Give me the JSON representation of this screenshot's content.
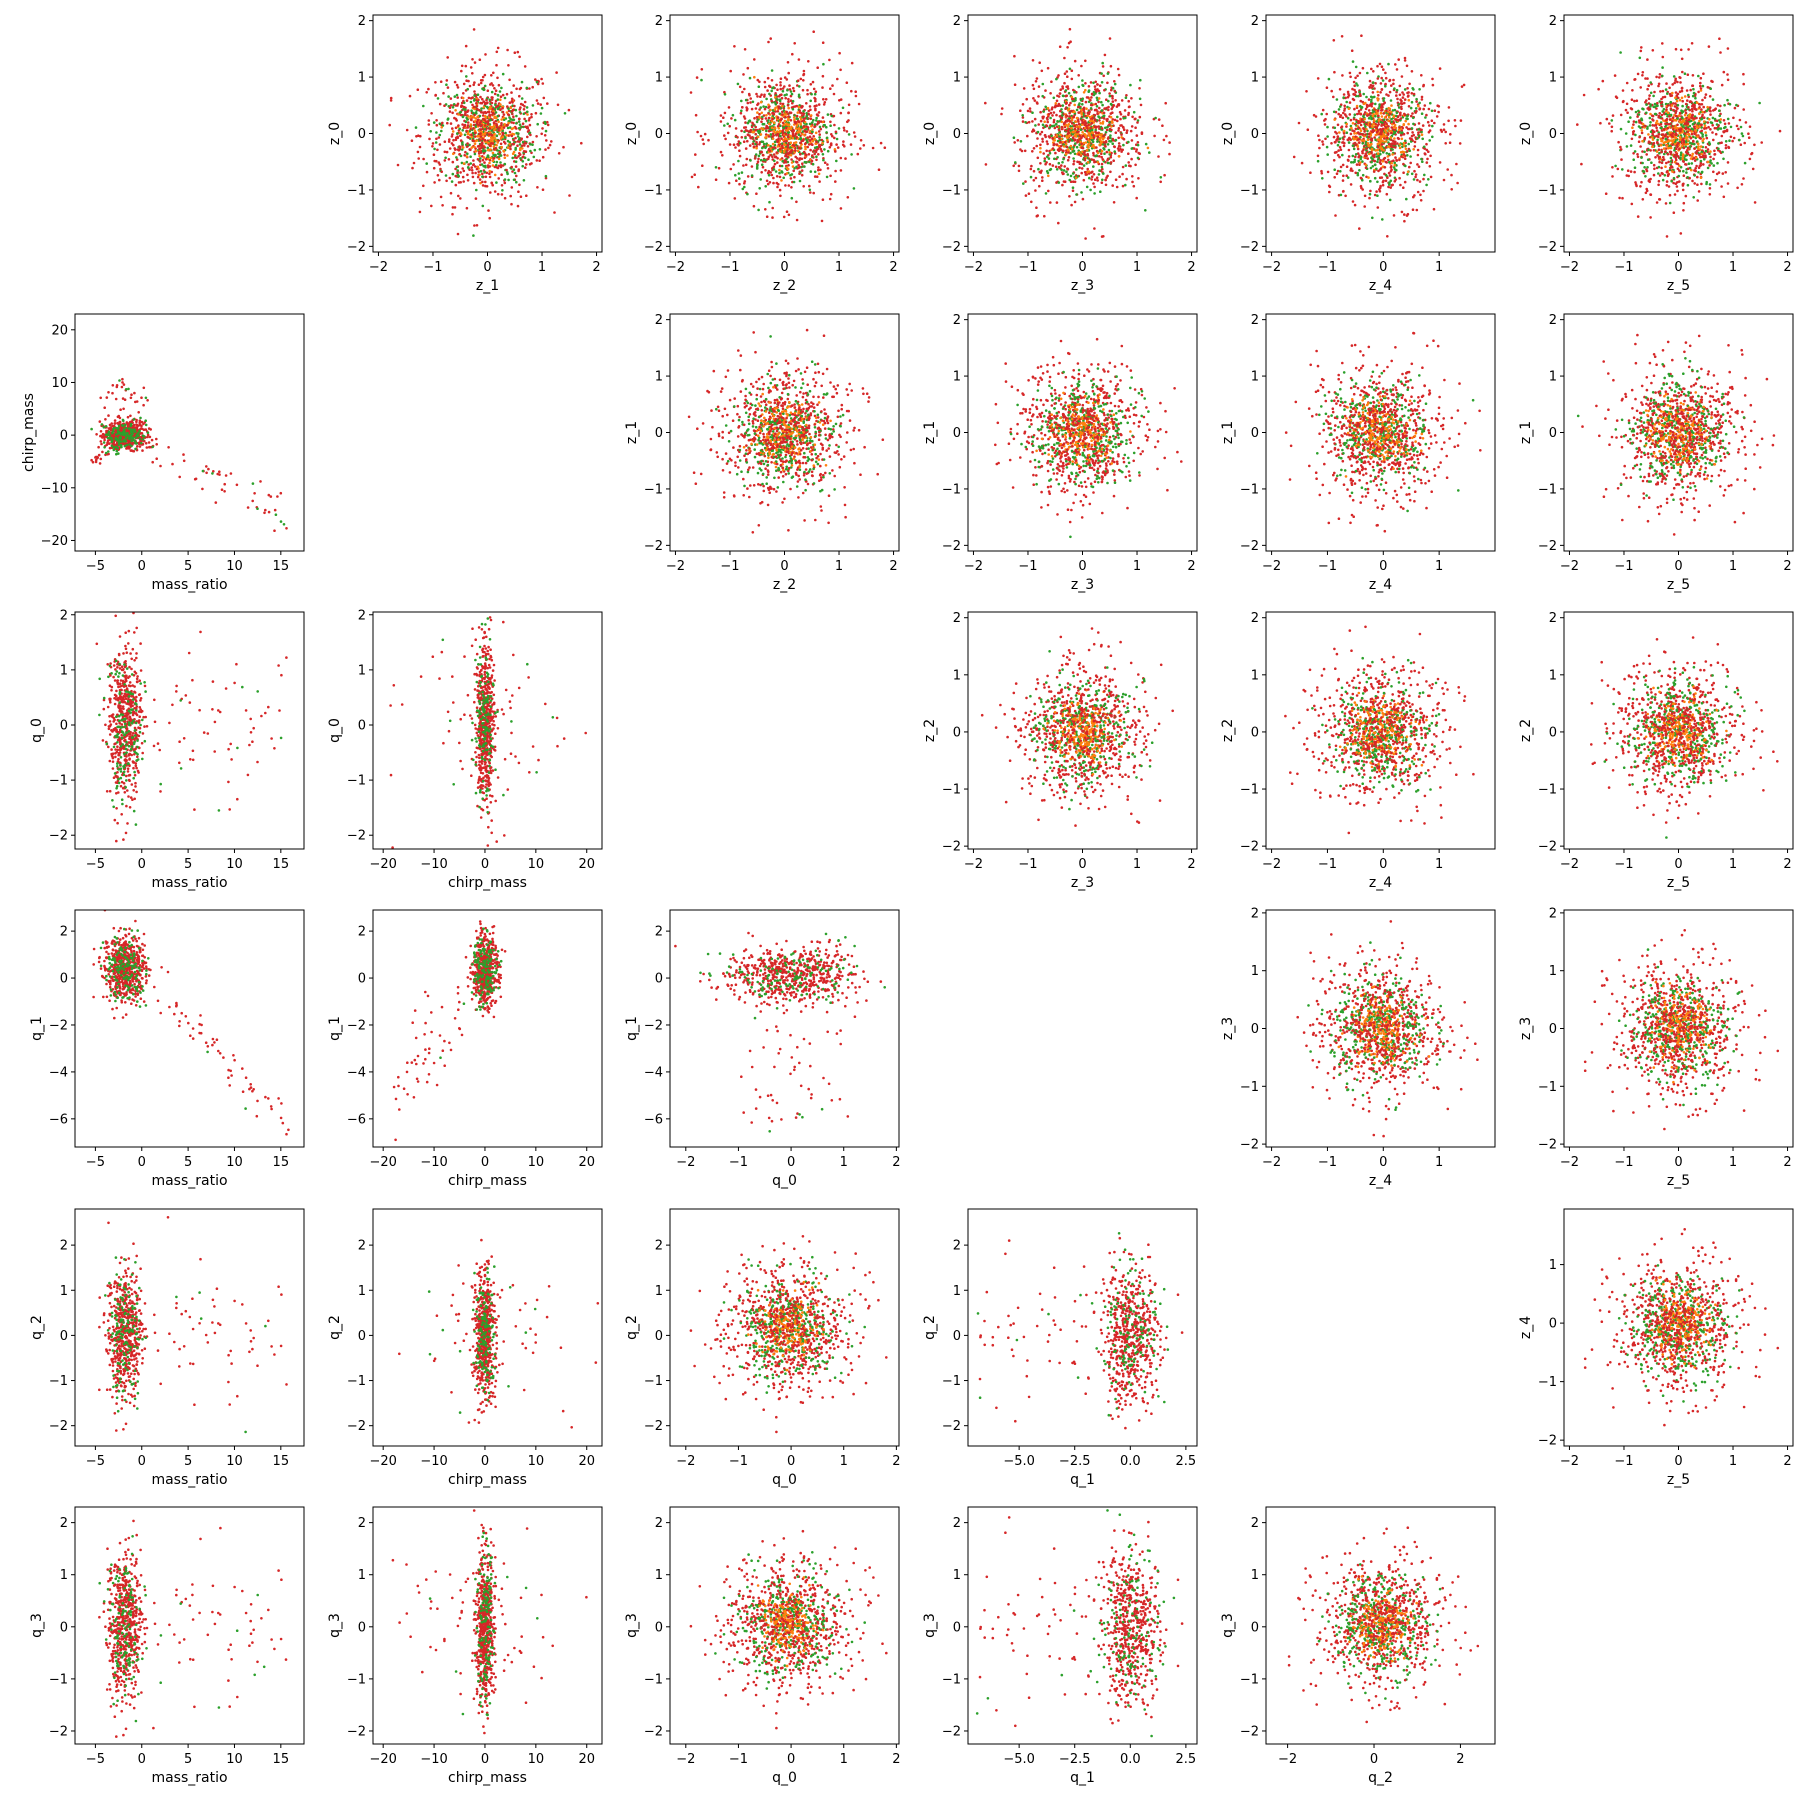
{
  "chart_data": {
    "type": "scatter",
    "layout": "corner-plot grid, 6 rows x 6 columns",
    "colors": {
      "red_points": "#d62728",
      "green_points": "#2ca02c",
      "orange_points": "#ff7f0e",
      "frame": "#000000"
    },
    "panels": [
      {
        "id": "p-0-1",
        "xlabel": "z_1",
        "ylabel": "z_0",
        "xlim": [
          -2.1,
          2.1
        ],
        "ylim": [
          -2.1,
          2.1
        ],
        "xticks": [
          -2,
          -1,
          0,
          1,
          2
        ],
        "yticks": [
          -2,
          -1,
          0,
          1,
          2
        ],
        "x_range": [
          -1.9,
          1.9
        ],
        "y_range": [
          -1.9,
          1.9
        ],
        "shape": "round"
      },
      {
        "id": "p-0-2",
        "xlabel": "z_2",
        "ylabel": "z_0",
        "xlim": [
          -2.1,
          2.1
        ],
        "ylim": [
          -2.1,
          2.1
        ],
        "xticks": [
          -2,
          -1,
          0,
          1,
          2
        ],
        "yticks": [
          -2,
          -1,
          0,
          1,
          2
        ],
        "x_range": [
          -1.9,
          1.9
        ],
        "y_range": [
          -1.9,
          1.9
        ],
        "shape": "round"
      },
      {
        "id": "p-0-3",
        "xlabel": "z_3",
        "ylabel": "z_0",
        "xlim": [
          -2.1,
          2.1
        ],
        "ylim": [
          -2.1,
          2.1
        ],
        "xticks": [
          -2,
          -1,
          0,
          1,
          2
        ],
        "yticks": [
          -2,
          -1,
          0,
          1,
          2
        ],
        "x_range": [
          -1.9,
          1.9
        ],
        "y_range": [
          -1.9,
          1.9
        ],
        "shape": "round"
      },
      {
        "id": "p-0-4",
        "xlabel": "z_4",
        "ylabel": "z_0",
        "xlim": [
          -2.1,
          2.0
        ],
        "ylim": [
          -2.1,
          2.1
        ],
        "xticks": [
          -2,
          -1,
          0,
          1
        ],
        "yticks": [
          -2,
          -1,
          0,
          1,
          2
        ],
        "x_range": [
          -1.9,
          1.8
        ],
        "y_range": [
          -1.9,
          1.9
        ],
        "shape": "round"
      },
      {
        "id": "p-0-5",
        "xlabel": "z_5",
        "ylabel": "z_0",
        "xlim": [
          -2.1,
          2.1
        ],
        "ylim": [
          -2.1,
          2.1
        ],
        "xticks": [
          -2,
          -1,
          0,
          1,
          2
        ],
        "yticks": [
          -2,
          -1,
          0,
          1,
          2
        ],
        "x_range": [
          -1.9,
          1.9
        ],
        "y_range": [
          -1.9,
          1.9
        ],
        "shape": "round"
      },
      {
        "id": "p-1-0",
        "xlabel": "mass_ratio",
        "ylabel": "chirp_mass",
        "xlim": [
          -7.2,
          17.5
        ],
        "ylim": [
          -22,
          23
        ],
        "xticks": [
          -5,
          0,
          5,
          10,
          15
        ],
        "yticks": [
          -20,
          -10,
          0,
          10,
          20
        ],
        "shape": "chirp_vs_ratio"
      },
      {
        "id": "p-1-2",
        "xlabel": "z_2",
        "ylabel": "z_1",
        "xlim": [
          -2.1,
          2.1
        ],
        "ylim": [
          -2.1,
          2.1
        ],
        "xticks": [
          -2,
          -1,
          0,
          1,
          2
        ],
        "yticks": [
          -2,
          -1,
          0,
          1,
          2
        ],
        "x_range": [
          -1.9,
          1.9
        ],
        "y_range": [
          -1.9,
          1.9
        ],
        "shape": "round"
      },
      {
        "id": "p-1-3",
        "xlabel": "z_3",
        "ylabel": "z_1",
        "xlim": [
          -2.1,
          2.1
        ],
        "ylim": [
          -2.1,
          2.1
        ],
        "xticks": [
          -2,
          -1,
          0,
          1,
          2
        ],
        "yticks": [
          -2,
          -1,
          0,
          1,
          2
        ],
        "x_range": [
          -1.9,
          1.9
        ],
        "y_range": [
          -1.9,
          1.9
        ],
        "shape": "round"
      },
      {
        "id": "p-1-4",
        "xlabel": "z_4",
        "ylabel": "z_1",
        "xlim": [
          -2.1,
          2.0
        ],
        "ylim": [
          -2.1,
          2.1
        ],
        "xticks": [
          -2,
          -1,
          0,
          1
        ],
        "yticks": [
          -2,
          -1,
          0,
          1,
          2
        ],
        "x_range": [
          -1.9,
          1.8
        ],
        "y_range": [
          -1.9,
          1.9
        ],
        "shape": "round"
      },
      {
        "id": "p-1-5",
        "xlabel": "z_5",
        "ylabel": "z_1",
        "xlim": [
          -2.1,
          2.1
        ],
        "ylim": [
          -2.1,
          2.1
        ],
        "xticks": [
          -2,
          -1,
          0,
          1,
          2
        ],
        "yticks": [
          -2,
          -1,
          0,
          1,
          2
        ],
        "x_range": [
          -1.9,
          1.9
        ],
        "y_range": [
          -1.9,
          1.9
        ],
        "shape": "round"
      },
      {
        "id": "p-2-0",
        "xlabel": "mass_ratio",
        "ylabel": "q_0",
        "xlim": [
          -7.2,
          17.5
        ],
        "ylim": [
          -2.25,
          2.05
        ],
        "xticks": [
          -5,
          0,
          5,
          10,
          15
        ],
        "yticks": [
          -2,
          -1,
          0,
          1,
          2
        ],
        "shape": "q_vs_ratio"
      },
      {
        "id": "p-2-1",
        "xlabel": "chirp_mass",
        "ylabel": "q_0",
        "xlim": [
          -22,
          23
        ],
        "ylim": [
          -2.25,
          2.05
        ],
        "xticks": [
          -20,
          -10,
          0,
          10,
          20
        ],
        "yticks": [
          -2,
          -1,
          0,
          1,
          2
        ],
        "shape": "q_vs_chirp"
      },
      {
        "id": "p-2-3",
        "xlabel": "z_3",
        "ylabel": "z_2",
        "xlim": [
          -2.1,
          2.1
        ],
        "ylim": [
          -2.05,
          2.1
        ],
        "xticks": [
          -2,
          -1,
          0,
          1,
          2
        ],
        "yticks": [
          -2,
          -1,
          0,
          1,
          2
        ],
        "x_range": [
          -1.9,
          1.9
        ],
        "y_range": [
          -1.9,
          1.9
        ],
        "shape": "round"
      },
      {
        "id": "p-2-4",
        "xlabel": "z_4",
        "ylabel": "z_2",
        "xlim": [
          -2.1,
          2.0
        ],
        "ylim": [
          -2.05,
          2.1
        ],
        "xticks": [
          -2,
          -1,
          0,
          1
        ],
        "yticks": [
          -2,
          -1,
          0,
          1,
          2
        ],
        "x_range": [
          -1.9,
          1.8
        ],
        "y_range": [
          -1.9,
          1.9
        ],
        "shape": "round"
      },
      {
        "id": "p-2-5",
        "xlabel": "z_5",
        "ylabel": "z_2",
        "xlim": [
          -2.1,
          2.1
        ],
        "ylim": [
          -2.05,
          2.1
        ],
        "xticks": [
          -2,
          -1,
          0,
          1,
          2
        ],
        "yticks": [
          -2,
          -1,
          0,
          1,
          2
        ],
        "x_range": [
          -1.9,
          1.9
        ],
        "y_range": [
          -1.9,
          1.9
        ],
        "shape": "round"
      },
      {
        "id": "p-3-0",
        "xlabel": "mass_ratio",
        "ylabel": "q_1",
        "xlim": [
          -7.2,
          17.5
        ],
        "ylim": [
          -7.2,
          2.9
        ],
        "xticks": [
          -5,
          0,
          5,
          10,
          15
        ],
        "yticks": [
          -6,
          -4,
          -2,
          0,
          2
        ],
        "shape": "q1_vs_ratio"
      },
      {
        "id": "p-3-1",
        "xlabel": "chirp_mass",
        "ylabel": "q_1",
        "xlim": [
          -22,
          23
        ],
        "ylim": [
          -7.2,
          2.9
        ],
        "xticks": [
          -20,
          -10,
          0,
          10,
          20
        ],
        "yticks": [
          -6,
          -4,
          -2,
          0,
          2
        ],
        "shape": "q1_vs_chirp"
      },
      {
        "id": "p-3-2",
        "xlabel": "q_0",
        "ylabel": "q_1",
        "xlim": [
          -2.3,
          2.05
        ],
        "ylim": [
          -7.2,
          2.9
        ],
        "xticks": [
          -2,
          -1,
          0,
          1,
          2
        ],
        "yticks": [
          -6,
          -4,
          -2,
          0,
          2
        ],
        "shape": "q1_vs_q0"
      },
      {
        "id": "p-3-4",
        "xlabel": "z_4",
        "ylabel": "z_3",
        "xlim": [
          -2.1,
          2.0
        ],
        "ylim": [
          -2.05,
          2.05
        ],
        "xticks": [
          -2,
          -1,
          0,
          1
        ],
        "yticks": [
          -2,
          -1,
          0,
          1,
          2
        ],
        "x_range": [
          -1.9,
          1.8
        ],
        "y_range": [
          -1.9,
          1.9
        ],
        "shape": "round"
      },
      {
        "id": "p-3-5",
        "xlabel": "z_5",
        "ylabel": "z_3",
        "xlim": [
          -2.1,
          2.1
        ],
        "ylim": [
          -2.05,
          2.05
        ],
        "xticks": [
          -2,
          -1,
          0,
          1,
          2
        ],
        "yticks": [
          -2,
          -1,
          0,
          1,
          2
        ],
        "x_range": [
          -1.9,
          1.9
        ],
        "y_range": [
          -1.9,
          1.9
        ],
        "shape": "round"
      },
      {
        "id": "p-4-0",
        "xlabel": "mass_ratio",
        "ylabel": "q_2",
        "xlim": [
          -7.2,
          17.5
        ],
        "ylim": [
          -2.45,
          2.8
        ],
        "xticks": [
          -5,
          0,
          5,
          10,
          15
        ],
        "yticks": [
          -2,
          -1,
          0,
          1,
          2
        ],
        "shape": "q_vs_ratio"
      },
      {
        "id": "p-4-1",
        "xlabel": "chirp_mass",
        "ylabel": "q_2",
        "xlim": [
          -22,
          23
        ],
        "ylim": [
          -2.45,
          2.8
        ],
        "xticks": [
          -20,
          -10,
          0,
          10,
          20
        ],
        "yticks": [
          -2,
          -1,
          0,
          1,
          2
        ],
        "shape": "q_vs_chirp"
      },
      {
        "id": "p-4-2",
        "xlabel": "q_0",
        "ylabel": "q_2",
        "xlim": [
          -2.3,
          2.05
        ],
        "ylim": [
          -2.45,
          2.8
        ],
        "xticks": [
          -2,
          -1,
          0,
          1,
          2
        ],
        "yticks": [
          -2,
          -1,
          0,
          1,
          2
        ],
        "x_range": [
          -2.0,
          1.9
        ],
        "y_range": [
          -2.2,
          2.5
        ],
        "shape": "round"
      },
      {
        "id": "p-4-3",
        "xlabel": "q_1",
        "ylabel": "q_2",
        "xlim": [
          -7.3,
          3.0
        ],
        "ylim": [
          -2.45,
          2.8
        ],
        "xticks": [
          -5.0,
          -2.5,
          0.0,
          2.5
        ],
        "xtick_labels": [
          "−5.0",
          "−2.5",
          "0.0",
          "2.5"
        ],
        "yticks": [
          -2,
          -1,
          0,
          1,
          2
        ],
        "shape": "q_vs_q1"
      },
      {
        "id": "p-4-5",
        "xlabel": "z_5",
        "ylabel": "z_4",
        "xlim": [
          -2.1,
          2.1
        ],
        "ylim": [
          -2.1,
          1.95
        ],
        "xticks": [
          -2,
          -1,
          0,
          1,
          2
        ],
        "yticks": [
          -2,
          -1,
          0,
          1
        ],
        "x_range": [
          -1.9,
          1.9
        ],
        "y_range": [
          -1.9,
          1.8
        ],
        "shape": "round"
      },
      {
        "id": "p-5-0",
        "xlabel": "mass_ratio",
        "ylabel": "q_3",
        "xlim": [
          -7.2,
          17.5
        ],
        "ylim": [
          -2.25,
          2.3
        ],
        "xticks": [
          -5,
          0,
          5,
          10,
          15
        ],
        "yticks": [
          -2,
          -1,
          0,
          1,
          2
        ],
        "shape": "q_vs_ratio"
      },
      {
        "id": "p-5-1",
        "xlabel": "chirp_mass",
        "ylabel": "q_3",
        "xlim": [
          -22,
          23
        ],
        "ylim": [
          -2.25,
          2.3
        ],
        "xticks": [
          -20,
          -10,
          0,
          10,
          20
        ],
        "yticks": [
          -2,
          -1,
          0,
          1,
          2
        ],
        "shape": "q_vs_chirp"
      },
      {
        "id": "p-5-2",
        "xlabel": "q_0",
        "ylabel": "q_3",
        "xlim": [
          -2.3,
          2.05
        ],
        "ylim": [
          -2.25,
          2.3
        ],
        "xticks": [
          -2,
          -1,
          0,
          1,
          2
        ],
        "yticks": [
          -2,
          -1,
          0,
          1,
          2
        ],
        "x_range": [
          -2.0,
          1.9
        ],
        "y_range": [
          -2.0,
          2.1
        ],
        "shape": "round"
      },
      {
        "id": "p-5-3",
        "xlabel": "q_1",
        "ylabel": "q_3",
        "xlim": [
          -7.3,
          3.0
        ],
        "ylim": [
          -2.25,
          2.3
        ],
        "xticks": [
          -5.0,
          -2.5,
          0.0,
          2.5
        ],
        "xtick_labels": [
          "−5.0",
          "−2.5",
          "0.0",
          "2.5"
        ],
        "yticks": [
          -2,
          -1,
          0,
          1,
          2
        ],
        "shape": "q_vs_q1"
      },
      {
        "id": "p-5-4",
        "xlabel": "q_2",
        "ylabel": "q_3",
        "xlim": [
          -2.5,
          2.8
        ],
        "ylim": [
          -2.25,
          2.3
        ],
        "xticks": [
          -2,
          0,
          2
        ],
        "yticks": [
          -2,
          -1,
          0,
          1,
          2
        ],
        "x_range": [
          -2.2,
          2.5
        ],
        "y_range": [
          -2.0,
          2.1
        ],
        "shape": "round"
      }
    ]
  }
}
